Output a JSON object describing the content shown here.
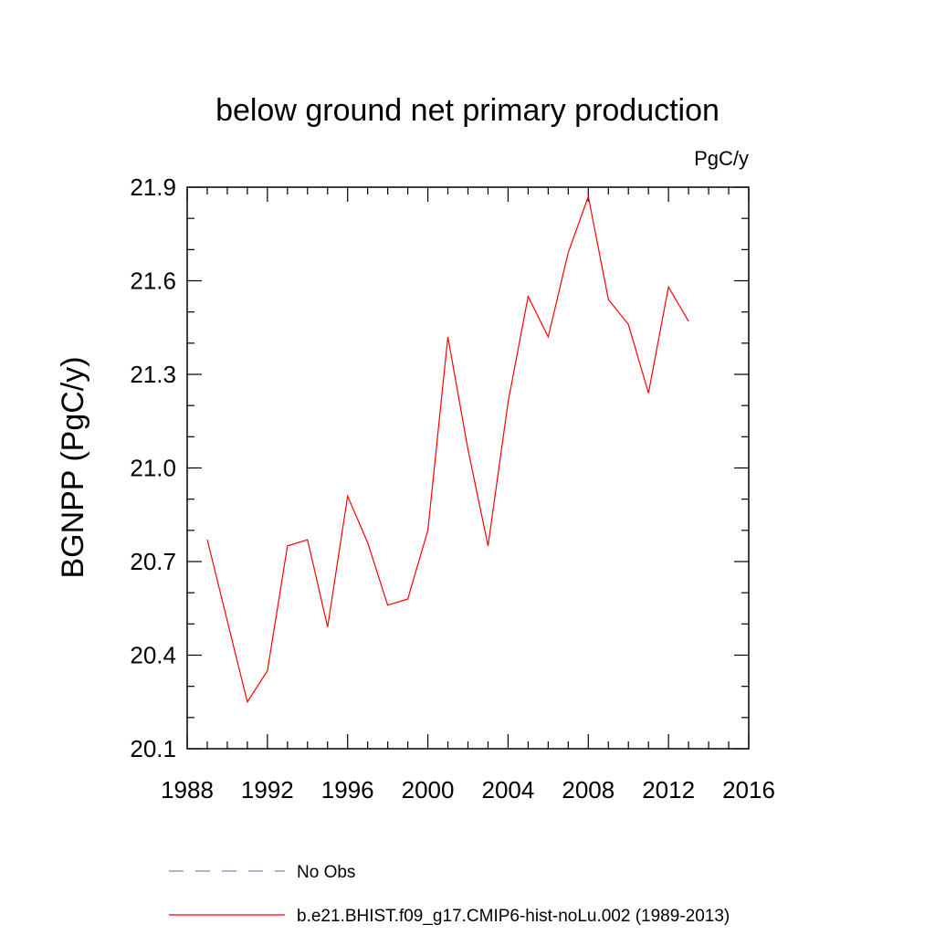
{
  "chart_data": {
    "type": "line",
    "title": "below ground net primary production",
    "units_label": "PgC/y",
    "ylabel": "BGNPP  (PgC/y)",
    "xlabel": "",
    "xlim": [
      1988,
      2016
    ],
    "ylim": [
      20.1,
      21.9
    ],
    "xticks": [
      "1988",
      "1992",
      "1996",
      "2000",
      "2004",
      "2008",
      "2012",
      "2016"
    ],
    "yticks": [
      "20.1",
      "20.4",
      "20.7",
      "21.0",
      "21.3",
      "21.6",
      "21.9"
    ],
    "series": [
      {
        "name": "b.e21.BHIST.f09_g17.CMIP6-hist-noLu.002 (1989-2013)",
        "color": "#ff0000",
        "x": [
          1989,
          1990,
          1991,
          1992,
          1993,
          1994,
          1995,
          1996,
          1997,
          1998,
          1999,
          2000,
          2001,
          2002,
          2003,
          2004,
          2005,
          2006,
          2007,
          2008,
          2009,
          2010,
          2011,
          2012,
          2013
        ],
        "y": [
          20.77,
          20.51,
          20.25,
          20.35,
          20.75,
          20.77,
          20.49,
          20.91,
          20.76,
          20.56,
          20.58,
          20.8,
          21.42,
          21.06,
          20.75,
          21.21,
          21.55,
          21.42,
          21.69,
          21.87,
          21.54,
          21.46,
          21.24,
          21.58,
          21.47
        ]
      }
    ],
    "legend": [
      {
        "label": "No Obs",
        "color": "#8080c0",
        "style": "dashed"
      },
      {
        "label": "b.e21.BHIST.f09_g17.CMIP6-hist-noLu.002 (1989-2013)",
        "color": "#ff0000",
        "style": "solid"
      }
    ],
    "legend_position": "bottom",
    "grid": false
  }
}
